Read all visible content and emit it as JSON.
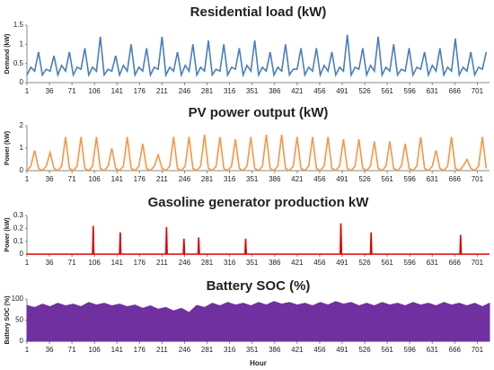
{
  "chart_data": [
    {
      "type": "line",
      "title": "Residential load (kW)",
      "ylabel": "Demand (kW)",
      "color": "#4a7ebb",
      "xlim": [
        1,
        720
      ],
      "xticks": [
        1,
        36,
        71,
        106,
        141,
        176,
        211,
        246,
        281,
        316,
        351,
        386,
        421,
        456,
        491,
        526,
        561,
        596,
        631,
        666,
        701
      ],
      "ylim": [
        0,
        1.5
      ],
      "yticks": [
        0,
        0.5,
        1,
        1.5
      ],
      "x": [
        1,
        7,
        13,
        19,
        25,
        31,
        37,
        43,
        49,
        55,
        61,
        67,
        73,
        79,
        85,
        91,
        97,
        103,
        109,
        115,
        121,
        127,
        133,
        139,
        145,
        151,
        157,
        163,
        169,
        175,
        181,
        187,
        193,
        199,
        205,
        211,
        217,
        223,
        229,
        235,
        241,
        247,
        253,
        259,
        265,
        271,
        277,
        283,
        289,
        295,
        301,
        307,
        313,
        319,
        325,
        331,
        337,
        343,
        349,
        355,
        361,
        367,
        373,
        379,
        385,
        391,
        397,
        403,
        409,
        415,
        421,
        427,
        433,
        439,
        445,
        451,
        457,
        463,
        469,
        475,
        481,
        487,
        493,
        499,
        505,
        511,
        517,
        523,
        529,
        535,
        541,
        547,
        553,
        559,
        565,
        571,
        577,
        583,
        589,
        595,
        601,
        607,
        613,
        619,
        625,
        631,
        637,
        643,
        649,
        655,
        661,
        667,
        673,
        679,
        685,
        691,
        697,
        703,
        709,
        715
      ],
      "values": [
        0.2,
        0.4,
        0.3,
        0.8,
        0.2,
        0.35,
        0.3,
        0.7,
        0.2,
        0.45,
        0.3,
        0.8,
        0.2,
        0.4,
        0.35,
        0.9,
        0.2,
        0.4,
        0.3,
        1.2,
        0.2,
        0.35,
        0.3,
        0.7,
        0.2,
        0.45,
        0.3,
        1.0,
        0.2,
        0.4,
        0.3,
        0.9,
        0.2,
        0.4,
        0.35,
        1.2,
        0.2,
        0.4,
        0.3,
        0.8,
        0.2,
        0.45,
        0.3,
        1.0,
        0.2,
        0.4,
        0.3,
        1.1,
        0.2,
        0.35,
        0.3,
        1.0,
        0.2,
        0.4,
        0.35,
        0.9,
        0.2,
        0.45,
        0.3,
        1.1,
        0.2,
        0.4,
        0.3,
        0.8,
        0.2,
        0.4,
        0.3,
        1.0,
        0.2,
        0.35,
        0.35,
        0.9,
        0.2,
        0.4,
        0.3,
        0.9,
        0.2,
        0.45,
        0.3,
        0.8,
        0.2,
        0.4,
        0.3,
        1.25,
        0.2,
        0.4,
        0.35,
        0.9,
        0.2,
        0.45,
        0.3,
        1.2,
        0.2,
        0.4,
        0.3,
        1.0,
        0.2,
        0.35,
        0.3,
        0.9,
        0.2,
        0.4,
        0.35,
        0.8,
        0.2,
        0.45,
        0.3,
        0.9,
        0.2,
        0.4,
        0.3,
        1.15,
        0.2,
        0.4,
        0.3,
        0.8,
        0.2,
        0.4,
        0.35,
        0.8
      ]
    },
    {
      "type": "line",
      "title": "PV power output (kW)",
      "ylabel": "Power (kW)",
      "color": "#f79646",
      "xlim": [
        1,
        720
      ],
      "xticks": [
        1,
        36,
        71,
        106,
        141,
        176,
        211,
        246,
        281,
        316,
        351,
        386,
        421,
        456,
        491,
        526,
        561,
        596,
        631,
        666,
        701
      ],
      "ylim": [
        0,
        2
      ],
      "yticks": [
        0,
        1,
        2
      ],
      "x": [
        1,
        7,
        13,
        19,
        25,
        31,
        37,
        43,
        49,
        55,
        61,
        67,
        73,
        79,
        85,
        91,
        97,
        103,
        109,
        115,
        121,
        127,
        133,
        139,
        145,
        151,
        157,
        163,
        169,
        175,
        181,
        187,
        193,
        199,
        205,
        211,
        217,
        223,
        229,
        235,
        241,
        247,
        253,
        259,
        265,
        271,
        277,
        283,
        289,
        295,
        301,
        307,
        313,
        319,
        325,
        331,
        337,
        343,
        349,
        355,
        361,
        367,
        373,
        379,
        385,
        391,
        397,
        403,
        409,
        415,
        421,
        427,
        433,
        439,
        445,
        451,
        457,
        463,
        469,
        475,
        481,
        487,
        493,
        499,
        505,
        511,
        517,
        523,
        529,
        535,
        541,
        547,
        553,
        559,
        565,
        571,
        577,
        583,
        589,
        595,
        601,
        607,
        613,
        619,
        625,
        631,
        637,
        643,
        649,
        655,
        661,
        667,
        673,
        679,
        685,
        691,
        697,
        703,
        709,
        715
      ],
      "values": [
        0,
        0.2,
        0.9,
        0.1,
        0,
        0.2,
        0.8,
        0.1,
        0,
        0.2,
        1.5,
        0.1,
        0,
        0.2,
        1.5,
        0.1,
        0,
        0.2,
        1.5,
        0.1,
        0,
        0.2,
        1.0,
        0.1,
        0,
        0.2,
        1.5,
        0.1,
        0,
        0.2,
        1.2,
        0.1,
        0,
        0.2,
        0.7,
        0.1,
        0,
        0.2,
        1.5,
        0.1,
        0,
        0.2,
        1.5,
        0.1,
        0,
        0.2,
        1.6,
        0.1,
        0,
        0.2,
        1.5,
        0.1,
        0,
        0.2,
        1.4,
        0.1,
        0,
        0.2,
        1.5,
        0.1,
        0,
        0.2,
        1.6,
        0.1,
        0,
        0.2,
        1.6,
        0.1,
        0,
        0.2,
        1.5,
        0.1,
        0,
        0.2,
        1.5,
        0.1,
        0,
        0.2,
        1.5,
        0.1,
        0,
        0.2,
        1.4,
        0.1,
        0,
        0.2,
        1.4,
        0.1,
        0,
        0.2,
        1.3,
        0.1,
        0,
        0.2,
        1.3,
        0.1,
        0,
        0.2,
        1.2,
        0.1,
        0,
        0.2,
        1.5,
        0.1,
        0,
        0.2,
        0.9,
        0.1,
        0,
        0.2,
        1.5,
        0.1,
        0,
        0.2,
        0.5,
        0.1,
        0,
        0.2,
        1.5,
        0.1
      ]
    },
    {
      "type": "line",
      "title": "Gasoline generator production  kW",
      "ylabel": "Power (kW)",
      "color": "#e00000",
      "xlim": [
        1,
        720
      ],
      "xticks": [
        1,
        36,
        71,
        106,
        141,
        176,
        211,
        246,
        281,
        316,
        351,
        386,
        421,
        456,
        491,
        526,
        561,
        596,
        631,
        666,
        701
      ],
      "ylim": [
        0,
        0.3
      ],
      "yticks": [
        0,
        0.1,
        0.2,
        0.3
      ],
      "x": [
        1,
        103,
        104,
        105,
        145,
        146,
        147,
        217,
        218,
        219,
        244,
        245,
        246,
        267,
        268,
        269,
        340,
        341,
        342,
        488,
        489,
        490,
        535,
        536,
        537,
        674,
        675,
        676,
        720
      ],
      "values": [
        0,
        0,
        0.22,
        0,
        0,
        0.17,
        0,
        0,
        0.21,
        0,
        0,
        0.12,
        0,
        0,
        0.13,
        0,
        0,
        0.12,
        0,
        0,
        0.24,
        0,
        0,
        0.17,
        0,
        0,
        0.15,
        0,
        0
      ]
    },
    {
      "type": "area",
      "title": "Battery SOC (%)",
      "ylabel": "Battery SOC (%)",
      "xlabel": "Hour",
      "color": "#7030a0",
      "xlim": [
        1,
        720
      ],
      "xticks": [
        1,
        36,
        71,
        106,
        141,
        176,
        211,
        246,
        281,
        316,
        351,
        386,
        421,
        456,
        491,
        526,
        561,
        596,
        631,
        666,
        701
      ],
      "ylim": [
        0,
        100
      ],
      "yticks": [
        0,
        50,
        100
      ],
      "x": [
        1,
        13,
        25,
        37,
        49,
        61,
        73,
        85,
        97,
        109,
        121,
        133,
        145,
        157,
        169,
        181,
        193,
        205,
        217,
        229,
        241,
        253,
        265,
        277,
        289,
        301,
        313,
        325,
        337,
        349,
        361,
        373,
        385,
        397,
        409,
        421,
        433,
        445,
        457,
        469,
        481,
        493,
        505,
        517,
        529,
        541,
        553,
        565,
        577,
        589,
        601,
        613,
        625,
        637,
        649,
        661,
        673,
        685,
        697,
        709,
        720
      ],
      "values": [
        85,
        80,
        88,
        82,
        90,
        84,
        88,
        82,
        92,
        86,
        90,
        84,
        88,
        82,
        86,
        78,
        84,
        76,
        80,
        72,
        78,
        68,
        85,
        80,
        90,
        84,
        92,
        86,
        90,
        84,
        92,
        86,
        94,
        88,
        92,
        86,
        90,
        84,
        92,
        86,
        94,
        88,
        92,
        84,
        90,
        84,
        92,
        86,
        90,
        84,
        92,
        86,
        90,
        84,
        92,
        86,
        90,
        84,
        90,
        82,
        90
      ]
    }
  ]
}
